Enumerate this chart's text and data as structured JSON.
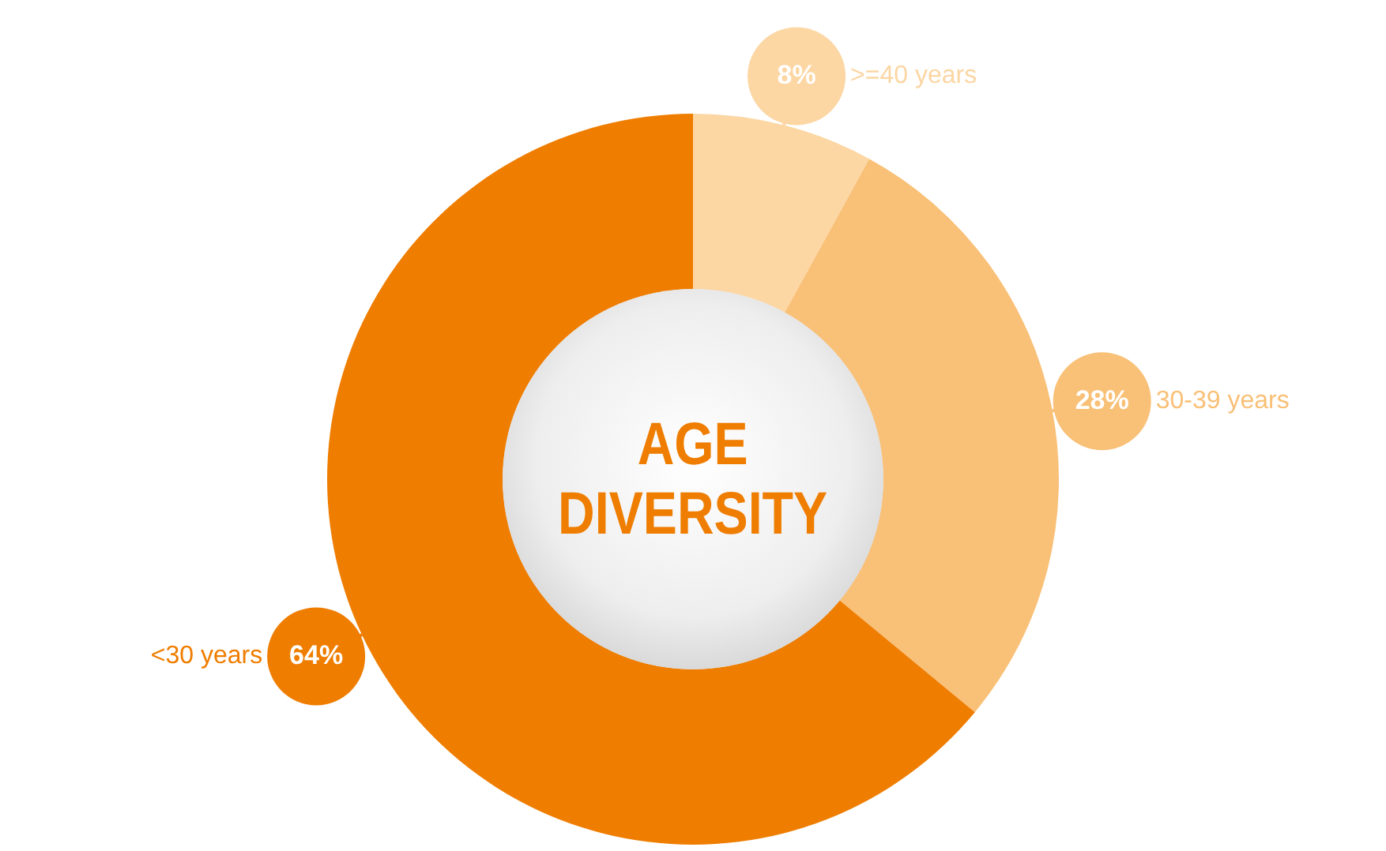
{
  "chart_data": {
    "type": "donut",
    "title": "AGE DIVERSITY",
    "categories": [
      ">=40 years",
      "30-39 years",
      "<30 years"
    ],
    "values": [
      8,
      28,
      64
    ],
    "colors": [
      "#fcd6a3",
      "#f9c077",
      "#ef7d00"
    ],
    "value_labels": [
      "8%",
      "28%",
      "64%"
    ],
    "legend": false
  }
}
